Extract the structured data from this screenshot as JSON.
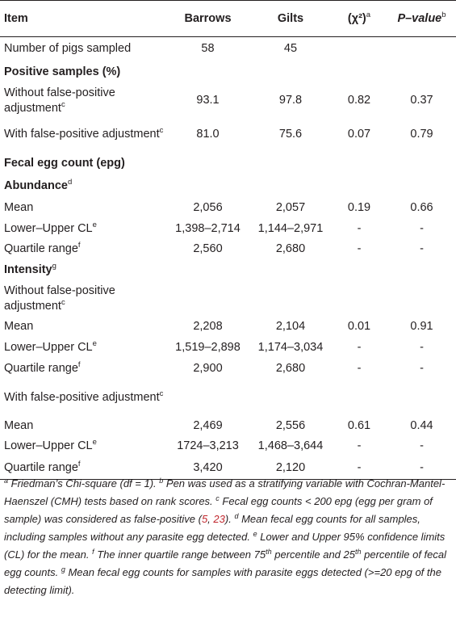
{
  "header": [
    "Item",
    "Barrows",
    "Gilts",
    "(χ²)",
    "P–value"
  ],
  "header_sups": [
    "",
    "",
    "",
    "a",
    "b"
  ],
  "rows": [
    {
      "label": "Number of pigs sampled",
      "sup": "",
      "bold": false,
      "values": [
        "58",
        "45",
        "",
        ""
      ],
      "h": 30
    },
    {
      "label": "Positive samples (%)",
      "sup": "",
      "bold": true,
      "values": [
        "",
        "",
        "",
        ""
      ],
      "h": 28
    },
    {
      "label": "Without false-positive adjustment",
      "sup": "c",
      "bold": false,
      "values": [
        "93.1",
        "97.8",
        "0.82",
        "0.37"
      ],
      "h": 42
    },
    {
      "label": "With false-positive adjustment",
      "sup": "c",
      "bold": false,
      "values": [
        "81.0",
        "75.6",
        "0.07",
        "0.79"
      ],
      "h": 42
    },
    {
      "label": "Fecal egg count (epg)",
      "sup": "",
      "bold": true,
      "values": [
        "",
        "",
        "",
        ""
      ],
      "h": 30
    },
    {
      "label": "Abundance",
      "sup": "d",
      "bold": true,
      "values": [
        "",
        "",
        "",
        ""
      ],
      "h": 26
    },
    {
      "label": "Mean",
      "sup": "",
      "bold": false,
      "values": [
        "2,056",
        "2,057",
        "0.19",
        "0.66"
      ],
      "h": 28
    },
    {
      "label": "Lower–Upper CL",
      "sup": "e",
      "bold": false,
      "values": [
        "1,398–2,714",
        "1,144–2,971",
        "-",
        "-"
      ],
      "h": 24
    },
    {
      "label": "Quartile range",
      "sup": "f",
      "bold": false,
      "values": [
        "2,560",
        "2,680",
        "-",
        "-"
      ],
      "h": 26
    },
    {
      "label": "Intensity",
      "sup": "g",
      "bold": true,
      "values": [
        "",
        "",
        "",
        ""
      ],
      "h": 26
    },
    {
      "label": "Without false-positive adjustment",
      "sup": "c",
      "bold": false,
      "values": [
        "",
        "",
        "",
        ""
      ],
      "h": 44
    },
    {
      "label": "Mean",
      "sup": "",
      "bold": false,
      "values": [
        "2,208",
        "2,104",
        "0.01",
        "0.91"
      ],
      "h": 26
    },
    {
      "label": "Lower–Upper CL",
      "sup": "e",
      "bold": false,
      "values": [
        "1,519–2,898",
        "1,174–3,034",
        "-",
        "-"
      ],
      "h": 26
    },
    {
      "label": "Quartile range",
      "sup": "f",
      "bold": false,
      "values": [
        "2,900",
        "2,680",
        "-",
        "-"
      ],
      "h": 26
    },
    {
      "label": "With false-positive adjustment",
      "sup": "c",
      "bold": false,
      "values": [
        "",
        "",
        "",
        ""
      ],
      "h": 46
    },
    {
      "label": "Mean",
      "sup": "",
      "bold": false,
      "values": [
        "2,469",
        "2,556",
        "0.61",
        "0.44"
      ],
      "h": 24
    },
    {
      "label": "Lower–Upper CL",
      "sup": "e",
      "bold": false,
      "values": [
        "1724–3,213",
        "1,468–3,644",
        "-",
        "-"
      ],
      "h": 26
    },
    {
      "label": "Quartile range",
      "sup": "f",
      "bold": false,
      "values": [
        "3,420",
        "2,120",
        "-",
        "-"
      ],
      "h": 28
    }
  ],
  "footnote": [
    {
      "sup": "a",
      "text": " Friedman’s Chi-square (df = 1). "
    },
    {
      "sup": "b",
      "text": " Pen was used as a stratifying variable with Cochran-Mantel-Haenszel (CMH) tests based on rank scores. "
    },
    {
      "sup": "c",
      "text": " Fecal egg counts < 200 epg (egg per gram of sample) was considered as false-positive ("
    },
    {
      "ref": "5"
    },
    {
      "text": ", "
    },
    {
      "ref": "23"
    },
    {
      "text": "). "
    },
    {
      "sup": "d",
      "text": " Mean fecal egg counts for all samples, including samples without any parasite egg detected. "
    },
    {
      "sup": "e",
      "text": " Lower and Upper 95% confidence limits (CL) for the mean. "
    },
    {
      "sup": "f",
      "text": " The inner quartile range between 75"
    },
    {
      "sup": "th",
      "text": " percentile and 25"
    },
    {
      "sup": "th",
      "text": " percentile of fecal egg counts. "
    },
    {
      "sup": "g",
      "text": " Mean fecal egg counts for samples with parasite eggs detected (>=20 epg of the detecting limit)."
    }
  ]
}
